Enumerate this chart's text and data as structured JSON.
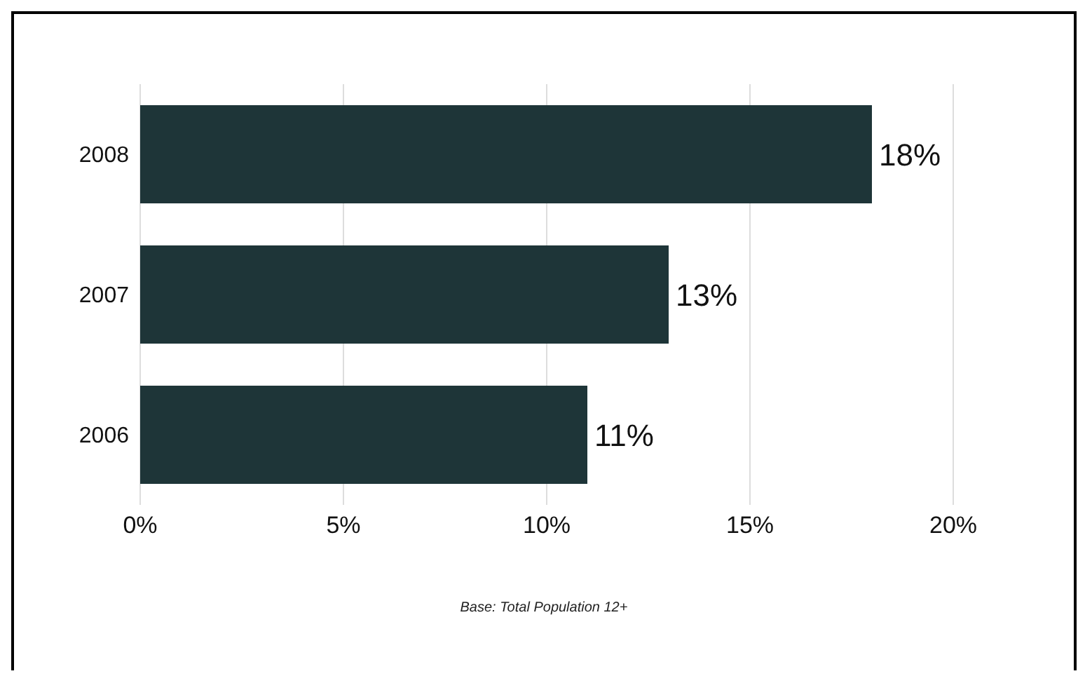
{
  "chart_data": {
    "type": "bar",
    "orientation": "horizontal",
    "categories": [
      "2008",
      "2007",
      "2006"
    ],
    "values": [
      18,
      13,
      11
    ],
    "value_labels": [
      "18%",
      "13%",
      "11%"
    ],
    "color": "#1e3538",
    "xlim": [
      0,
      20
    ],
    "xticks": [
      {
        "value": 0,
        "label": "0%"
      },
      {
        "value": 5,
        "label": "5%"
      },
      {
        "value": 10,
        "label": "10%"
      },
      {
        "value": 15,
        "label": "15%"
      },
      {
        "value": 20,
        "label": "20%"
      }
    ],
    "grid": "x",
    "annotations": [
      "Base: Total Population 12+"
    ]
  }
}
